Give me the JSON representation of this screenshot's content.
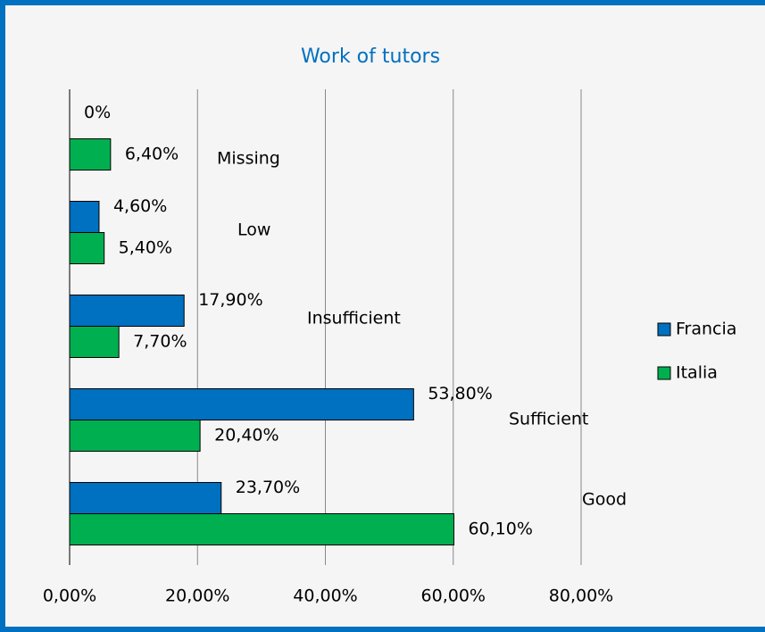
{
  "chart_data": {
    "type": "hbar",
    "title": "Work of tutors",
    "categories": [
      "Missing",
      "Low",
      "Insufficient",
      "Sufficient",
      "Good"
    ],
    "series": [
      {
        "name": "Francia",
        "color": "#0070c0",
        "values": [
          0,
          4.6,
          17.9,
          53.8,
          23.7
        ],
        "value_labels": [
          "0%",
          "4,60%",
          "17,90%",
          "53,80%",
          "23,70%"
        ]
      },
      {
        "name": "Italia",
        "color": "#00b050",
        "values": [
          6.4,
          5.4,
          7.7,
          20.4,
          60.1
        ],
        "value_labels": [
          "6,40%",
          "5,40%",
          "7,70%",
          "20,40%",
          "60,10%"
        ]
      }
    ],
    "xlim": [
      0,
      80
    ],
    "xticks": [
      {
        "value": 0,
        "label": "0,00%"
      },
      {
        "value": 20,
        "label": "20,00%"
      },
      {
        "value": 40,
        "label": "40,00%"
      },
      {
        "value": 60,
        "label": "60,00%"
      },
      {
        "value": 80,
        "label": "80,00%"
      }
    ],
    "grid": true,
    "legend": "right"
  }
}
